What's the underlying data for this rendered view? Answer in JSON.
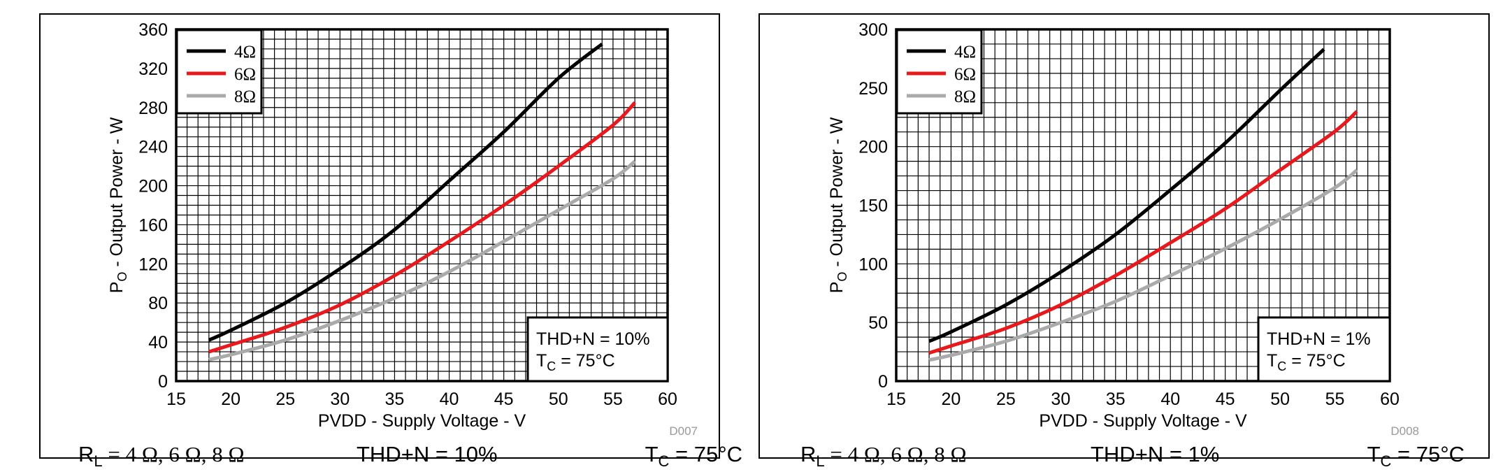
{
  "chart_data": [
    {
      "type": "line",
      "id": "D007",
      "xlabel": "PVDD - Supply Voltage - V",
      "ylabel_main": "P",
      "ylabel_sub": "O",
      "ylabel_rest": " - Output Power - W",
      "xlim": [
        15,
        60
      ],
      "ylim": [
        0,
        360
      ],
      "x_ticks": [
        15,
        20,
        25,
        30,
        35,
        40,
        45,
        50,
        55,
        60
      ],
      "y_ticks": [
        0,
        40,
        80,
        120,
        160,
        200,
        240,
        280,
        320,
        360
      ],
      "grid_minor_x": 1,
      "grid_minor_y": 10,
      "series": [
        {
          "name": "4Ω",
          "color": "#000000",
          "x": [
            18,
            20,
            25,
            30,
            35,
            40,
            45,
            50,
            54
          ],
          "y": [
            42,
            52,
            80,
            115,
            155,
            205,
            255,
            310,
            345
          ]
        },
        {
          "name": "6Ω",
          "color": "#e8191d",
          "x": [
            18,
            20,
            25,
            30,
            35,
            40,
            45,
            50,
            55,
            57
          ],
          "y": [
            30,
            37,
            55,
            78,
            108,
            143,
            180,
            220,
            262,
            285
          ]
        },
        {
          "name": "8Ω",
          "color": "#aaaaaa",
          "x": [
            18,
            20,
            25,
            30,
            35,
            40,
            45,
            50,
            55,
            57
          ],
          "y": [
            22,
            27,
            42,
            62,
            85,
            112,
            143,
            175,
            207,
            225
          ]
        }
      ],
      "legend_position": "top-left",
      "annotation": {
        "line1": "THD+N = 10%",
        "line2_main": "T",
        "line2_sub": "C",
        "line2_rest": " = 75°C"
      },
      "footer": {
        "left_main": "R",
        "left_sub": "L",
        "left_rest": " = 4 Ω, 6 Ω, 8 Ω",
        "mid": "THD+N = 10%",
        "right_main": "T",
        "right_sub": "C",
        "right_rest": " = 75°C"
      }
    },
    {
      "type": "line",
      "id": "D008",
      "xlabel": "PVDD - Supply Voltage - V",
      "ylabel_main": "P",
      "ylabel_sub": "O",
      "ylabel_rest": " - Output Power - W",
      "xlim": [
        15,
        60
      ],
      "ylim": [
        0,
        300
      ],
      "x_ticks": [
        15,
        20,
        25,
        30,
        35,
        40,
        45,
        50,
        55,
        60
      ],
      "y_ticks": [
        0,
        50,
        100,
        150,
        200,
        250,
        300
      ],
      "grid_minor_x": 1,
      "grid_minor_y": 12.5,
      "series": [
        {
          "name": "4Ω",
          "color": "#000000",
          "x": [
            18,
            20,
            25,
            30,
            35,
            40,
            45,
            50,
            54
          ],
          "y": [
            34,
            42,
            65,
            93,
            125,
            163,
            203,
            248,
            283
          ]
        },
        {
          "name": "6Ω",
          "color": "#e8191d",
          "x": [
            18,
            20,
            25,
            30,
            35,
            40,
            45,
            50,
            55,
            57
          ],
          "y": [
            24,
            30,
            45,
            65,
            90,
            118,
            147,
            180,
            213,
            230
          ]
        },
        {
          "name": "8Ω",
          "color": "#aaaaaa",
          "x": [
            18,
            20,
            25,
            30,
            35,
            40,
            45,
            50,
            55,
            57
          ],
          "y": [
            18,
            22,
            34,
            50,
            68,
            90,
            113,
            138,
            165,
            180
          ]
        }
      ],
      "legend_position": "top-left",
      "annotation": {
        "line1": "THD+N = 1%",
        "line2_main": "T",
        "line2_sub": "C",
        "line2_rest": " = 75°C"
      },
      "footer": {
        "left_main": "R",
        "left_sub": "L",
        "left_rest": " = 4 Ω, 6 Ω, 8 Ω",
        "mid": "THD+N = 1%",
        "right_main": "T",
        "right_sub": "C",
        "right_rest": " = 75°C"
      }
    }
  ]
}
